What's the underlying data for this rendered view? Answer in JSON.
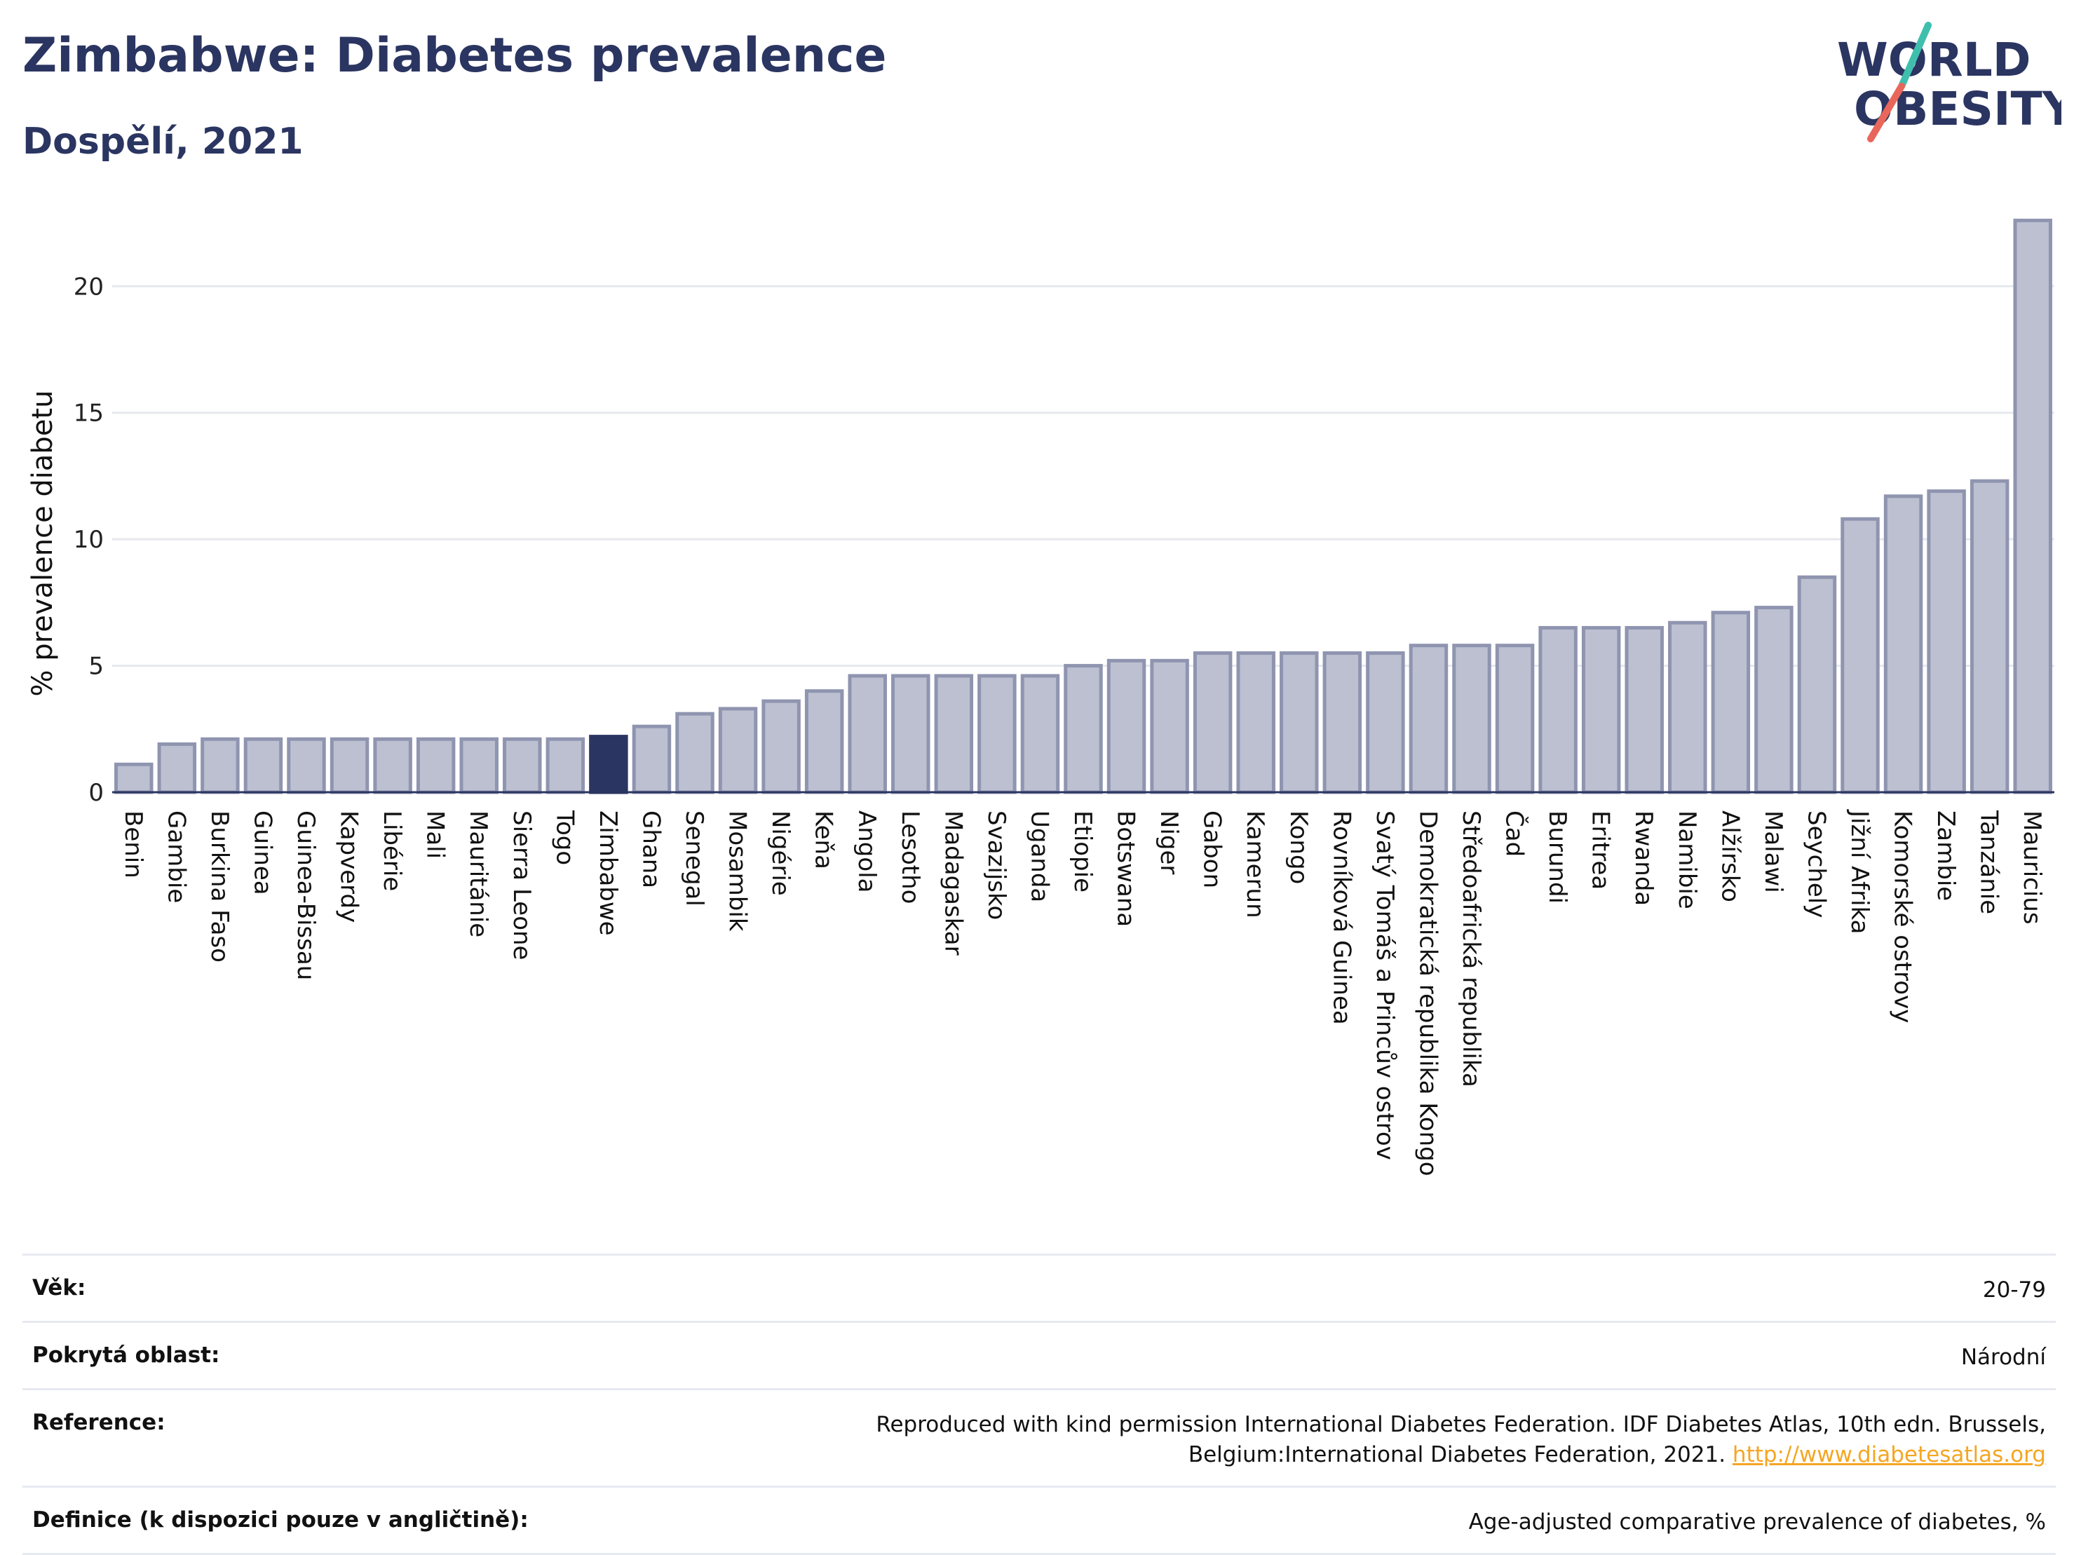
{
  "header": {
    "title": "Zimbabwe: Diabetes prevalence",
    "subtitle": "Dospělí, 2021"
  },
  "logo": {
    "line1": "WORLD",
    "line2": "OBESITY",
    "accent_teal": "#3fbfad",
    "accent_red": "#e8675a"
  },
  "colors": {
    "bar": "#bcc0d0",
    "bar_border": "#8f95b0",
    "highlight": "#2b3561",
    "grid": "#e6e8ee",
    "axis": "#2b3561"
  },
  "chart_data": {
    "type": "bar",
    "title": "Zimbabwe: Diabetes prevalence",
    "subtitle": "Dospělí, 2021",
    "xlabel": "",
    "ylabel": "% prevalence diabetu",
    "ylim": [
      0,
      23
    ],
    "yticks": [
      0,
      5,
      10,
      15,
      20
    ],
    "grid": true,
    "highlight": "Zimbabwe",
    "categories": [
      "Benin",
      "Gambie",
      "Burkina Faso",
      "Guinea",
      "Guinea-Bissau",
      "Kapverdy",
      "Libérie",
      "Mali",
      "Mauritánie",
      "Sierra Leone",
      "Togo",
      "Zimbabwe",
      "Ghana",
      "Senegal",
      "Mosambik",
      "Nigérie",
      "Keňa",
      "Angola",
      "Lesotho",
      "Madagaskar",
      "Svazijsko",
      "Uganda",
      "Etiopie",
      "Botswana",
      "Niger",
      "Gabon",
      "Kamerun",
      "Kongo",
      "Rovníková Guinea",
      "Svatý Tomáš a Princův ostrov",
      "Demokratická republika Kongo",
      "Středoafrická republika",
      "Čad",
      "Burundi",
      "Eritrea",
      "Rwanda",
      "Namibie",
      "Alžírsko",
      "Malawi",
      "Seychely",
      "Jižní Afrika",
      "Komorské ostrovy",
      "Zambie",
      "Tanzánie",
      "Mauricius"
    ],
    "values": [
      1.1,
      1.9,
      2.1,
      2.1,
      2.1,
      2.1,
      2.1,
      2.1,
      2.1,
      2.1,
      2.1,
      2.2,
      2.6,
      3.1,
      3.3,
      3.6,
      4.0,
      4.6,
      4.6,
      4.6,
      4.6,
      4.6,
      5.0,
      5.2,
      5.2,
      5.5,
      5.5,
      5.5,
      5.5,
      5.5,
      5.8,
      5.8,
      5.8,
      6.5,
      6.5,
      6.5,
      6.7,
      7.1,
      7.3,
      8.5,
      10.8,
      11.7,
      11.9,
      12.3,
      22.6
    ]
  },
  "meta": [
    {
      "key": "Věk:",
      "value": "20-79"
    },
    {
      "key": "Pokrytá oblast:",
      "value": "Národní"
    },
    {
      "key": "Reference:",
      "value": "Reproduced with kind permission International Diabetes Federation.  IDF Diabetes Atlas, 10th edn. Brussels, Belgium:International Diabetes Federation, 2021. ",
      "link": "http://www.diabetesatlas.org"
    },
    {
      "key": "Definice (k dispozici pouze v angličtině):",
      "value": "Age-adjusted comparative prevalence of diabetes, %"
    }
  ]
}
